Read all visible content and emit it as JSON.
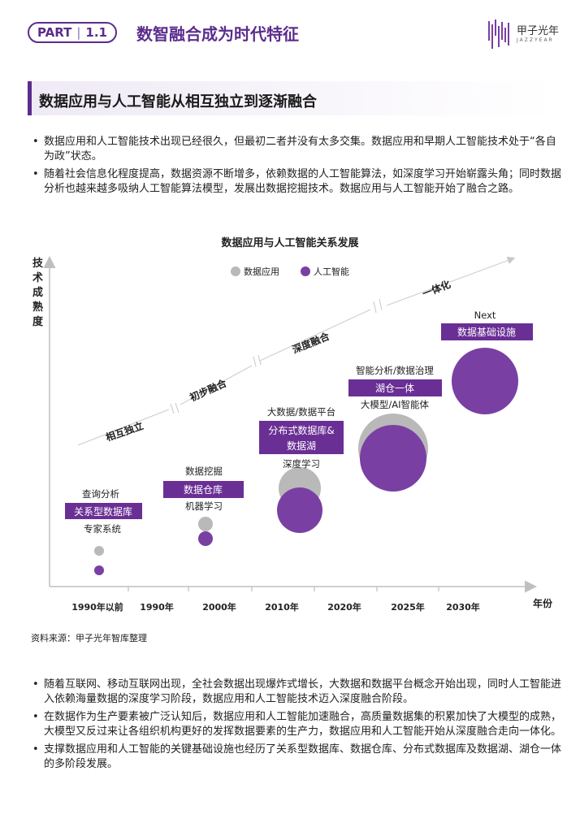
{
  "header": {
    "part_label": "PART",
    "part_number": "1.1",
    "title": "数智融合成为时代特征",
    "logo_text": "甲子光年",
    "logo_sub": "JAZZYEAR"
  },
  "section": {
    "title": "数据应用与人工智能从相互独立到逐渐融合"
  },
  "top_bullets": [
    "数据应用和人工智能技术出现已经很久，但最初二者并没有太多交集。数据应用和早期人工智能技术处于“各自为政”状态。",
    "随着社会信息化程度提高，数据资源不断增多，依赖数据的人工智能算法，如深度学习开始崭露头角；同时数据分析也越来越多吸纳人工智能算法模型，发展出数据挖掘技术。数据应用与人工智能开始了融合之路。"
  ],
  "bullet_glyph": "•",
  "chart_data": {
    "type": "scatter",
    "title": "数据应用与人工智能关系发展",
    "ylabel": "技术成熟度",
    "xlabel": "年份",
    "categories": [
      "1990年以前",
      "1990年",
      "2000年",
      "2010年",
      "2020年",
      "2025年",
      "2030年"
    ],
    "legend": [
      {
        "name": "数据应用",
        "color": "#b9b9b9"
      },
      {
        "name": "人工智能",
        "color": "#7a3fa3"
      }
    ],
    "legend_position": "top",
    "stages": [
      "相互独立",
      "初步融合",
      "深度融合",
      "一体化"
    ],
    "milestones": [
      {
        "top": "查询分析",
        "badge": "关系型数据库",
        "bottom": "专家系统"
      },
      {
        "top": "数据挖掘",
        "badge": "数据仓库",
        "bottom": "机器学习"
      },
      {
        "top": "大数据/数据平台",
        "badge_lines": [
          "分布式数据库&",
          "数据湖"
        ],
        "bottom": "深度学习"
      },
      {
        "top": "智能分析/数据治理",
        "badge": "湖仓一体",
        "bottom": "大模型/AI智能体"
      },
      {
        "top": "Next",
        "badge": "数据基础设施"
      }
    ],
    "colors": {
      "gray": "#b9b9b9",
      "purple": "#7a3fa3",
      "badge": "#6a2f95",
      "axis": "#bfbfbf"
    }
  },
  "source": "资料来源：甲子光年智库整理",
  "bottom_bullets": [
    "随着互联网、移动互联网出现，全社会数据出现爆炸式增长，大数据和数据平台概念开始出现，同时人工智能进入依赖海量数据的深度学习阶段，数据应用和人工智能技术迈入深度融合阶段。",
    "在数据作为生产要素被广泛认知后，数据应用和人工智能加速融合，高质量数据集的积累加快了大模型的成熟，大模型又反过来让各组织机构更好的发挥数据要素的生产力，数据应用和人工智能开始从深度融合走向一体化。",
    "支撑数据应用和人工智能的关键基础设施也经历了关系型数据库、数据仓库、分布式数据库及数据湖、湖仓一体的多阶段发展。"
  ]
}
